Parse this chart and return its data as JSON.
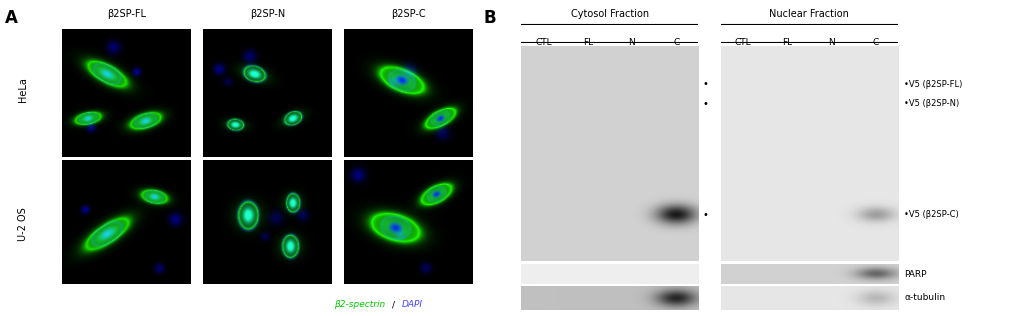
{
  "figure_width": 10.24,
  "figure_height": 3.16,
  "background_color": "#ffffff",
  "panel_a": {
    "label": "A",
    "col_titles": [
      "β2SP-FL",
      "β2SP-N",
      "β2SP-C"
    ],
    "row_labels": [
      "HeLa",
      "U-2 OS"
    ],
    "bottom_label_green": "β2-spectrin",
    "bottom_label_blue": "DAPI"
  },
  "panel_b": {
    "label": "B",
    "cytosol_title": "Cytosol Fraction",
    "nuclear_title": "Nuclear Fraction",
    "col_labels": [
      "CTL",
      "FL",
      "N",
      "C"
    ],
    "right_labels": [
      "•V5 (β2SP-FL)",
      "•V5 (β2SP-N)",
      "•V5 (β2SP-C)",
      "PARP",
      "α-tubulin"
    ],
    "dot_labels": [
      "•",
      "•",
      "•"
    ]
  }
}
